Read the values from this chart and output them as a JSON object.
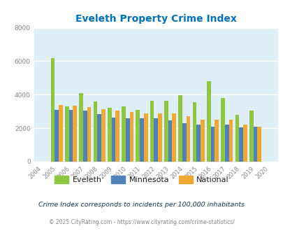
{
  "title": "Eveleth Property Crime Index",
  "years": [
    2004,
    2005,
    2006,
    2007,
    2008,
    2009,
    2010,
    2011,
    2012,
    2013,
    2014,
    2015,
    2016,
    2017,
    2018,
    2019,
    2020
  ],
  "eveleth": [
    0,
    6200,
    3300,
    4100,
    3600,
    3200,
    3300,
    3100,
    3650,
    3650,
    3950,
    3550,
    4800,
    3800,
    2800,
    3050,
    0
  ],
  "minnesota": [
    0,
    3100,
    3100,
    3050,
    2850,
    2650,
    2600,
    2600,
    2600,
    2450,
    2300,
    2200,
    2100,
    2200,
    2050,
    2100,
    0
  ],
  "national": [
    0,
    3400,
    3350,
    3250,
    3150,
    3050,
    2950,
    2900,
    2900,
    2900,
    2700,
    2500,
    2500,
    2500,
    2200,
    2100,
    0
  ],
  "ylim": [
    0,
    8000
  ],
  "yticks": [
    0,
    2000,
    4000,
    6000,
    8000
  ],
  "bar_width": 0.28,
  "eveleth_color": "#8dc63f",
  "minnesota_color": "#4f81bd",
  "national_color": "#f0a830",
  "bg_color": "#ddeef6",
  "grid_color": "#ffffff",
  "title_color": "#0070c0",
  "legend_note": "Crime Index corresponds to incidents per 100,000 inhabitants",
  "footer": "© 2025 CityRating.com - https://www.cityrating.com/crime-statistics/",
  "note_color": "#1a3a5c",
  "footer_color": "#888888"
}
